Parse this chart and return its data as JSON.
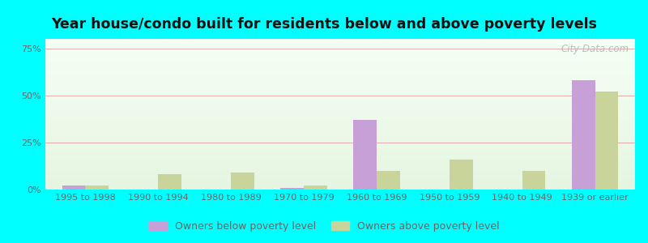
{
  "categories": [
    "1995 to 1998",
    "1990 to 1994",
    "1980 to 1989",
    "1970 to 1979",
    "1960 to 1969",
    "1950 to 1959",
    "1940 to 1949",
    "1939 or earlier"
  ],
  "below_poverty": [
    2.0,
    0.0,
    0.0,
    1.0,
    37.0,
    0.0,
    0.0,
    58.0
  ],
  "above_poverty": [
    2.0,
    8.0,
    9.0,
    2.0,
    10.0,
    16.0,
    10.0,
    52.0
  ],
  "below_color": "#c8a0d8",
  "above_color": "#c8d49a",
  "title": "Year house/condo built for residents below and above poverty levels",
  "ylabel_ticks": [
    0,
    25,
    50,
    75
  ],
  "ytick_labels": [
    "0%",
    "25%",
    "50%",
    "75%"
  ],
  "ylim": [
    0,
    80
  ],
  "background_color": "#00ffff",
  "legend_below": "Owners below poverty level",
  "legend_above": "Owners above poverty level",
  "title_fontsize": 12.5,
  "tick_fontsize": 8,
  "legend_fontsize": 9
}
